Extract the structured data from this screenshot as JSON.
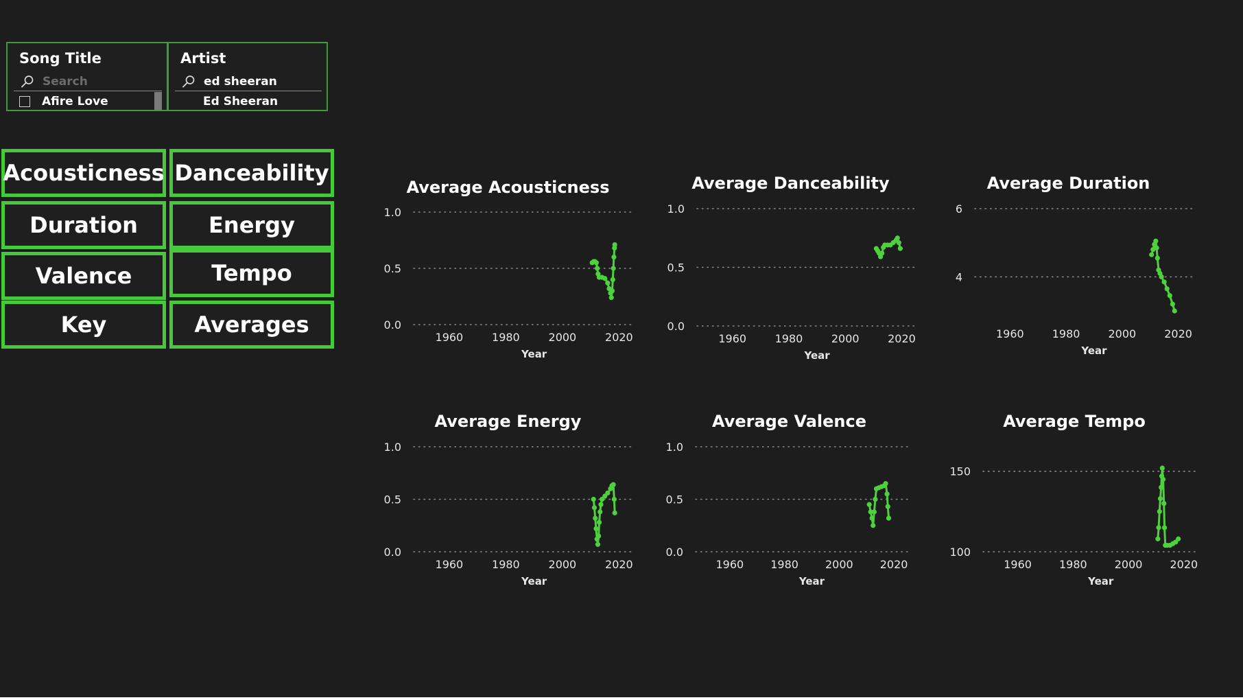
{
  "slicers": {
    "song": {
      "title": "Song Title",
      "search_placeholder": "Search",
      "option": "Afire Love"
    },
    "artist": {
      "title": "Artist",
      "search_value": "ed sheeran",
      "option": "Ed Sheeran"
    }
  },
  "nav_buttons": [
    "Acousticness",
    "Danceability",
    "Duration",
    "Energy",
    "Valence",
    "Tempo",
    "Key",
    "Averages"
  ],
  "colors": {
    "accent": "#46c93a",
    "marker": "#4fd13f",
    "background": "#1d1d1d",
    "grid": "#8a8a8a"
  },
  "chart_data": [
    {
      "id": "acousticness",
      "type": "line",
      "title": "Average Acousticness",
      "xlabel": "Year",
      "ylabel": "",
      "xlim": [
        1945,
        2025
      ],
      "ylim": [
        0,
        1
      ],
      "xticks": [
        1960,
        1980,
        2000,
        2020
      ],
      "yticks": [
        "0.0",
        "0.5",
        "1.0"
      ],
      "grid": true,
      "points": [
        [
          2010.5,
          0.55
        ],
        [
          2011,
          0.56
        ],
        [
          2011.5,
          0.56
        ],
        [
          2012,
          0.55
        ],
        [
          2012.3,
          0.5
        ],
        [
          2012.6,
          0.45
        ],
        [
          2013,
          0.42
        ],
        [
          2014,
          0.42
        ],
        [
          2015,
          0.41
        ],
        [
          2016,
          0.37
        ],
        [
          2016.5,
          0.32
        ],
        [
          2017,
          0.28
        ],
        [
          2017.3,
          0.24
        ],
        [
          2017.6,
          0.3
        ],
        [
          2017.8,
          0.4
        ],
        [
          2018,
          0.5
        ],
        [
          2018.2,
          0.6
        ],
        [
          2018.4,
          0.68
        ],
        [
          2018.5,
          0.71
        ]
      ]
    },
    {
      "id": "danceability",
      "type": "line",
      "title": "Average Danceability",
      "xlabel": "Year",
      "ylabel": "",
      "xlim": [
        1945,
        2025
      ],
      "ylim": [
        0,
        1
      ],
      "xticks": [
        1960,
        1980,
        2000,
        2020
      ],
      "yticks": [
        "0.0",
        "0.5",
        "1.0"
      ],
      "grid": true,
      "points": [
        [
          2011,
          0.66
        ],
        [
          2011.5,
          0.64
        ],
        [
          2012,
          0.62
        ],
        [
          2012.5,
          0.59
        ],
        [
          2013,
          0.62
        ],
        [
          2013.5,
          0.67
        ],
        [
          2014,
          0.69
        ],
        [
          2015,
          0.69
        ],
        [
          2016,
          0.69
        ],
        [
          2017,
          0.71
        ],
        [
          2018,
          0.73
        ],
        [
          2018.5,
          0.75
        ],
        [
          2019,
          0.71
        ],
        [
          2019.5,
          0.66
        ]
      ]
    },
    {
      "id": "duration",
      "type": "line",
      "title": "Average Duration",
      "xlabel": "Year",
      "ylabel": "",
      "xlim": [
        1945,
        2025
      ],
      "ylim": [
        2.7,
        6
      ],
      "xticks": [
        1960,
        1980,
        2000,
        2020
      ],
      "yticks": [
        "4",
        "6"
      ],
      "grid": true,
      "points": [
        [
          2010.5,
          4.65
        ],
        [
          2011,
          4.8
        ],
        [
          2011.5,
          4.95
        ],
        [
          2012,
          5.05
        ],
        [
          2012.3,
          4.85
        ],
        [
          2012.6,
          4.55
        ],
        [
          2013,
          4.2
        ],
        [
          2013.5,
          4.1
        ],
        [
          2014,
          4.0
        ],
        [
          2015,
          3.85
        ],
        [
          2016,
          3.65
        ],
        [
          2017,
          3.45
        ],
        [
          2018,
          3.2
        ],
        [
          2018.7,
          3.0
        ]
      ]
    },
    {
      "id": "energy",
      "type": "line",
      "title": "Average Energy",
      "xlabel": "Year",
      "ylabel": "",
      "xlim": [
        1945,
        2025
      ],
      "ylim": [
        0,
        1
      ],
      "xticks": [
        1960,
        1980,
        2000,
        2020
      ],
      "yticks": [
        "0.0",
        "0.5",
        "1.0"
      ],
      "grid": true,
      "points": [
        [
          2011,
          0.5
        ],
        [
          2011.3,
          0.42
        ],
        [
          2011.6,
          0.32
        ],
        [
          2011.9,
          0.22
        ],
        [
          2012.2,
          0.12
        ],
        [
          2012.5,
          0.07
        ],
        [
          2012.8,
          0.15
        ],
        [
          2013,
          0.28
        ],
        [
          2013.3,
          0.38
        ],
        [
          2013.6,
          0.45
        ],
        [
          2014,
          0.5
        ],
        [
          2015,
          0.53
        ],
        [
          2016,
          0.56
        ],
        [
          2017,
          0.6
        ],
        [
          2017.5,
          0.63
        ],
        [
          2018,
          0.64
        ],
        [
          2018.3,
          0.5
        ],
        [
          2018.5,
          0.37
        ]
      ]
    },
    {
      "id": "valence",
      "type": "line",
      "title": "Average Valence",
      "xlabel": "Year",
      "ylabel": "",
      "xlim": [
        1945,
        2025
      ],
      "ylim": [
        0,
        1
      ],
      "xticks": [
        1960,
        1980,
        2000,
        2020
      ],
      "yticks": [
        "0.0",
        "0.5",
        "1.0"
      ],
      "grid": true,
      "points": [
        [
          2011,
          0.45
        ],
        [
          2011.5,
          0.38
        ],
        [
          2012,
          0.32
        ],
        [
          2012.4,
          0.25
        ],
        [
          2012.8,
          0.38
        ],
        [
          2013.2,
          0.5
        ],
        [
          2013.6,
          0.6
        ],
        [
          2014.5,
          0.61
        ],
        [
          2015.5,
          0.62
        ],
        [
          2016.5,
          0.63
        ],
        [
          2017,
          0.65
        ],
        [
          2017.5,
          0.55
        ],
        [
          2017.8,
          0.43
        ],
        [
          2018.1,
          0.32
        ]
      ]
    },
    {
      "id": "tempo",
      "type": "line",
      "title": "Average Tempo",
      "xlabel": "Year",
      "ylabel": "",
      "xlim": [
        1945,
        2025
      ],
      "ylim": [
        100,
        155
      ],
      "xticks": [
        1960,
        1980,
        2000,
        2020
      ],
      "yticks": [
        "100",
        "150"
      ],
      "grid": true,
      "points": [
        [
          2010.6,
          108
        ],
        [
          2010.9,
          115
        ],
        [
          2011.2,
          125
        ],
        [
          2011.5,
          133
        ],
        [
          2011.8,
          140
        ],
        [
          2012,
          147
        ],
        [
          2012.2,
          152
        ],
        [
          2012.5,
          145
        ],
        [
          2012.8,
          130
        ],
        [
          2013,
          115
        ],
        [
          2013.3,
          104
        ],
        [
          2014,
          104
        ],
        [
          2015,
          104
        ],
        [
          2016,
          105
        ],
        [
          2017,
          106
        ],
        [
          2018,
          108
        ]
      ]
    }
  ]
}
